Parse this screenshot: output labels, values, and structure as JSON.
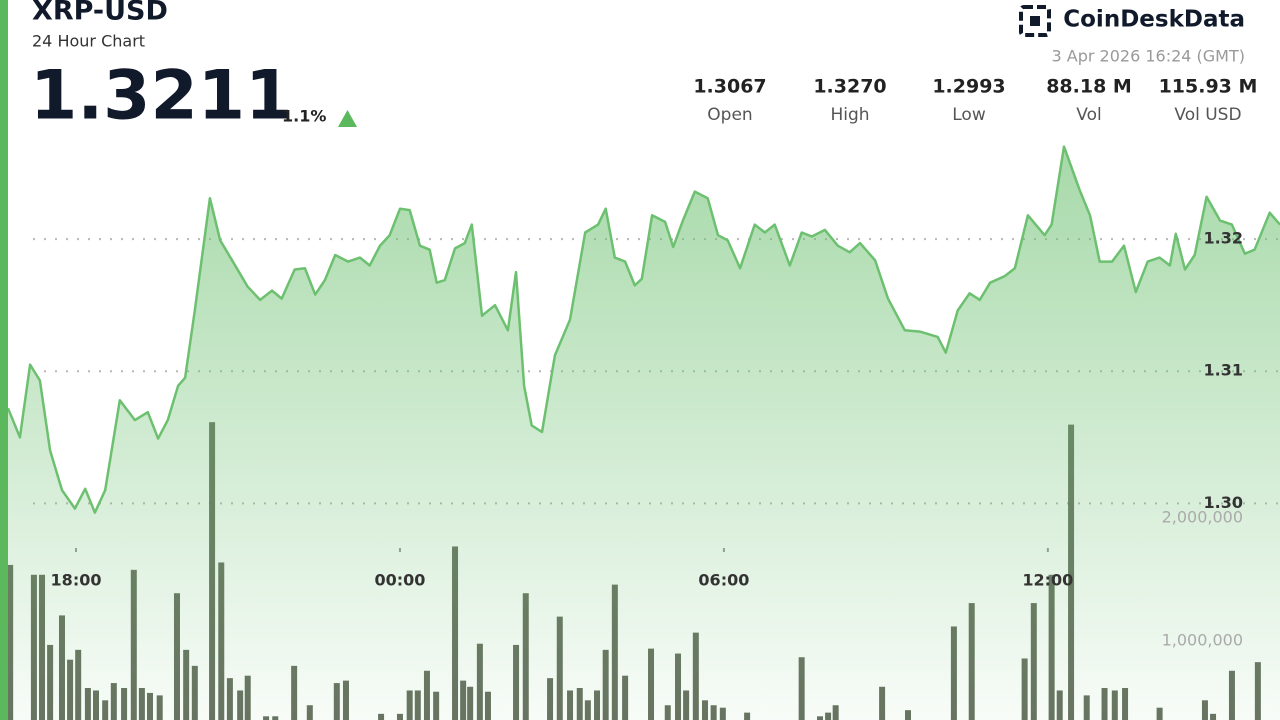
{
  "chart_data": {
    "type": "line",
    "title": "XRP-USD",
    "subtitle": "24 Hour Chart",
    "price": "1.3211",
    "change": "1.1%",
    "brand": "CoinDeskData",
    "timestamp": "3 Apr 2026 16:24 (GMT)",
    "stats": [
      {
        "value": "1.3067",
        "label": "Open"
      },
      {
        "value": "1.3270",
        "label": "High"
      },
      {
        "value": "1.2993",
        "label": "Low"
      },
      {
        "value": "88.18 M",
        "label": "Vol"
      },
      {
        "value": "115.93 M",
        "label": "Vol USD"
      }
    ],
    "xlim": [
      0.74,
      24.3
    ],
    "xticks": [
      {
        "value": 2,
        "label": "18:00"
      },
      {
        "value": 8,
        "label": "00:00"
      },
      {
        "value": 14,
        "label": "06:00"
      },
      {
        "value": 20,
        "label": "12:00"
      }
    ],
    "ylim": [
      1.2836,
      1.3381
    ],
    "yticks": [
      {
        "value": 1.3,
        "label": "1.30"
      },
      1.31,
      1.32
    ],
    "y2lim": [
      360000,
      6210000
    ],
    "y2ticks": [
      {
        "value": 1000000,
        "label": "1,000,000"
      },
      {
        "value": 2000000,
        "label": "2,000,000"
      }
    ],
    "grid": true,
    "series": [
      {
        "type": "bar",
        "axis": "y2",
        "color": "#56614f",
        "x": [
          0.78,
          1.22,
          1.37,
          1.52,
          1.74,
          1.89,
          2.04,
          2.22,
          2.37,
          2.54,
          2.7,
          2.89,
          3.07,
          3.22,
          3.37,
          3.55,
          3.87,
          4.04,
          4.2,
          4.52,
          4.69,
          4.85,
          5.04,
          5.18,
          5.52,
          5.69,
          6.04,
          6.33,
          6.83,
          7.0,
          7.65,
          8.0,
          8.18,
          8.33,
          8.5,
          8.67,
          9.02,
          9.17,
          9.3,
          9.48,
          9.63,
          10.15,
          10.33,
          10.78,
          10.96,
          11.15,
          11.33,
          11.48,
          11.65,
          11.81,
          11.98,
          12.17,
          12.65,
          12.96,
          13.15,
          13.3,
          13.48,
          13.65,
          13.81,
          13.98,
          14.43,
          15.44,
          15.78,
          15.93,
          16.07,
          16.93,
          17.41,
          18.26,
          18.59,
          19.57,
          19.74,
          20.07,
          20.22,
          20.43,
          20.72,
          21.05,
          21.24,
          21.43,
          22.07,
          22.91,
          23.06,
          23.41,
          23.89
        ],
        "values": [
          1620000,
          1540000,
          1540000,
          970000,
          1210000,
          850000,
          930000,
          620000,
          600000,
          520000,
          660000,
          620000,
          1580000,
          620000,
          580000,
          560000,
          1390000,
          930000,
          800000,
          2780000,
          1640000,
          700000,
          600000,
          720000,
          390000,
          390000,
          800000,
          480000,
          660000,
          680000,
          410000,
          410000,
          600000,
          600000,
          760000,
          590000,
          1770000,
          680000,
          630000,
          980000,
          590000,
          970000,
          1390000,
          700000,
          1200000,
          600000,
          620000,
          520000,
          600000,
          930000,
          1460000,
          720000,
          940000,
          480000,
          900000,
          600000,
          1070000,
          520000,
          480000,
          460000,
          420000,
          870000,
          390000,
          420000,
          480000,
          630000,
          440000,
          1120000,
          1310000,
          860000,
          1310000,
          1540000,
          600000,
          2760000,
          560000,
          620000,
          600000,
          620000,
          460000,
          520000,
          410000,
          760000,
          830000
        ]
      },
      {
        "type": "line",
        "color": "#6cc070",
        "x": [
          0.74,
          0.96,
          1.15,
          1.33,
          1.52,
          1.74,
          1.98,
          2.17,
          2.35,
          2.54,
          2.81,
          3.09,
          3.33,
          3.52,
          3.7,
          3.89,
          4.02,
          4.2,
          4.48,
          4.67,
          4.89,
          5.18,
          5.41,
          5.63,
          5.81,
          6.05,
          6.24,
          6.43,
          6.61,
          6.8,
          7.04,
          7.26,
          7.44,
          7.63,
          7.81,
          8.0,
          8.18,
          8.37,
          8.55,
          8.68,
          8.83,
          9.02,
          9.2,
          9.33,
          9.52,
          9.76,
          10.0,
          10.15,
          10.3,
          10.44,
          10.63,
          10.87,
          11.15,
          11.43,
          11.67,
          11.81,
          11.98,
          12.17,
          12.35,
          12.48,
          12.67,
          12.91,
          13.06,
          13.24,
          13.46,
          13.7,
          13.89,
          14.07,
          14.3,
          14.57,
          14.76,
          14.94,
          15.22,
          15.44,
          15.63,
          15.87,
          16.11,
          16.33,
          16.52,
          16.8,
          17.04,
          17.35,
          17.63,
          17.96,
          18.11,
          18.33,
          18.55,
          18.74,
          18.93,
          19.2,
          19.39,
          19.63,
          19.94,
          20.07,
          20.3,
          20.59,
          20.78,
          20.96,
          21.19,
          21.41,
          21.63,
          21.85,
          22.07,
          22.26,
          22.37,
          22.54,
          22.72,
          22.94,
          23.19,
          23.41,
          23.65,
          23.83,
          24.11,
          24.3
        ],
        "values": [
          1.3072,
          1.305,
          1.3105,
          1.3093,
          1.304,
          1.301,
          1.2996,
          1.3011,
          1.2993,
          1.301,
          1.3078,
          1.3063,
          1.3069,
          1.3049,
          1.3063,
          1.3089,
          1.3095,
          1.3146,
          1.3231,
          1.3199,
          1.3184,
          1.3164,
          1.3154,
          1.3161,
          1.3155,
          1.3177,
          1.3178,
          1.3158,
          1.3169,
          1.3188,
          1.3183,
          1.3186,
          1.318,
          1.3195,
          1.3203,
          1.3223,
          1.3222,
          1.3195,
          1.3192,
          1.3167,
          1.3169,
          1.3193,
          1.3197,
          1.3211,
          1.3142,
          1.315,
          1.3131,
          1.3175,
          1.3089,
          1.3059,
          1.3054,
          1.3112,
          1.3139,
          1.3205,
          1.3211,
          1.3223,
          1.3186,
          1.3183,
          1.3165,
          1.317,
          1.3218,
          1.3213,
          1.3194,
          1.3214,
          1.3236,
          1.3231,
          1.3203,
          1.3199,
          1.3178,
          1.3211,
          1.3205,
          1.3211,
          1.318,
          1.3205,
          1.3202,
          1.3207,
          1.3195,
          1.319,
          1.3197,
          1.3184,
          1.3155,
          1.3131,
          1.313,
          1.3126,
          1.3114,
          1.3146,
          1.3159,
          1.3154,
          1.3167,
          1.3172,
          1.3178,
          1.3218,
          1.3203,
          1.3211,
          1.327,
          1.3237,
          1.3218,
          1.3183,
          1.3183,
          1.3195,
          1.316,
          1.3183,
          1.3186,
          1.318,
          1.3204,
          1.3177,
          1.3188,
          1.3232,
          1.3214,
          1.3211,
          1.3189,
          1.3192,
          1.322,
          1.3211
        ]
      }
    ]
  }
}
